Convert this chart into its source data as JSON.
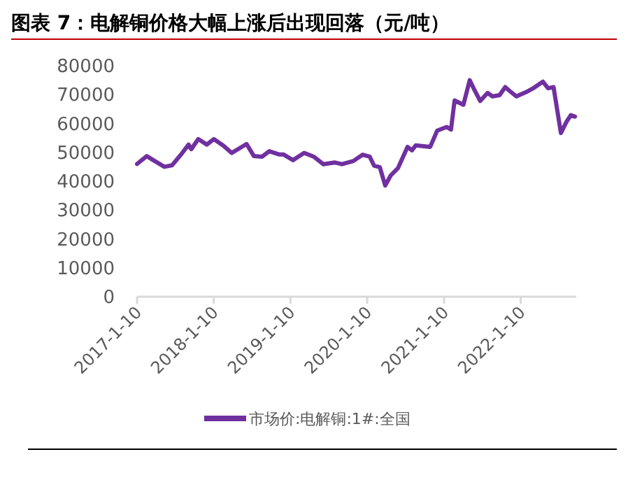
{
  "chart_data": {
    "type": "line",
    "title": "图表 7：电解铜价格大幅上涨后出现回落（元/吨）",
    "x": [
      "2017-01-10",
      "2017-02-25",
      "2017-03-28",
      "2017-05-20",
      "2017-06-25",
      "2017-08-10",
      "2017-09-12",
      "2017-09-25",
      "2017-10-28",
      "2017-12-08",
      "2018-01-10",
      "2018-02-25",
      "2018-04-05",
      "2018-05-12",
      "2018-06-15",
      "2018-07-20",
      "2018-08-28",
      "2018-10-01",
      "2018-11-16",
      "2018-12-07",
      "2019-01-22",
      "2019-03-16",
      "2019-05-01",
      "2019-06-15",
      "2019-08-08",
      "2019-09-12",
      "2019-11-05",
      "2019-12-20",
      "2020-01-22",
      "2020-02-12",
      "2020-03-10",
      "2020-04-05",
      "2020-05-01",
      "2020-06-05",
      "2020-07-20",
      "2020-08-10",
      "2020-08-28",
      "2020-11-05",
      "2020-12-08",
      "2021-01-22",
      "2021-02-12",
      "2021-03-01",
      "2021-04-12",
      "2021-05-12",
      "2021-06-05",
      "2021-07-01",
      "2021-08-05",
      "2021-08-28",
      "2021-10-01",
      "2021-10-28",
      "2021-11-16",
      "2021-12-20",
      "2022-02-05",
      "2022-03-10",
      "2022-04-25",
      "2022-05-20",
      "2022-06-15",
      "2022-07-20",
      "2022-08-15",
      "2022-09-05",
      "2022-09-25"
    ],
    "series": [
      {
        "name": "市场价:电解铜:1#:全国",
        "color": "#7030a0",
        "values": [
          46000,
          48700,
          47300,
          45000,
          45500,
          49500,
          52700,
          51100,
          54600,
          52700,
          54600,
          52300,
          49800,
          51400,
          52900,
          48700,
          48500,
          50400,
          49300,
          49300,
          47300,
          49800,
          48500,
          45900,
          46500,
          45900,
          47000,
          49200,
          48500,
          45400,
          44900,
          38500,
          42000,
          44600,
          51900,
          50700,
          52400,
          51900,
          57500,
          58800,
          57900,
          68000,
          66500,
          75000,
          71400,
          67800,
          70600,
          69400,
          69800,
          72600,
          71400,
          69400,
          70900,
          72200,
          74500,
          72200,
          72600,
          56700,
          60500,
          62900,
          62400
        ]
      }
    ],
    "xlim": [
      "2017-01-10",
      "2022-10-01"
    ],
    "xticks": [
      {
        "value": "2017-01-10",
        "label": "2017-1-10"
      },
      {
        "value": "2018-01-10",
        "label": "2018-1-10"
      },
      {
        "value": "2019-01-10",
        "label": "2019-1-10"
      },
      {
        "value": "2020-01-10",
        "label": "2020-1-10"
      },
      {
        "value": "2021-01-10",
        "label": "2021-1-10"
      },
      {
        "value": "2022-01-10",
        "label": "2022-1-10"
      }
    ],
    "ylim": [
      0,
      80000
    ],
    "yticks": [
      0,
      10000,
      20000,
      30000,
      40000,
      50000,
      60000,
      70000,
      80000
    ],
    "grid": false,
    "legend": "bottom",
    "marker": "none",
    "line_style": "solid"
  }
}
